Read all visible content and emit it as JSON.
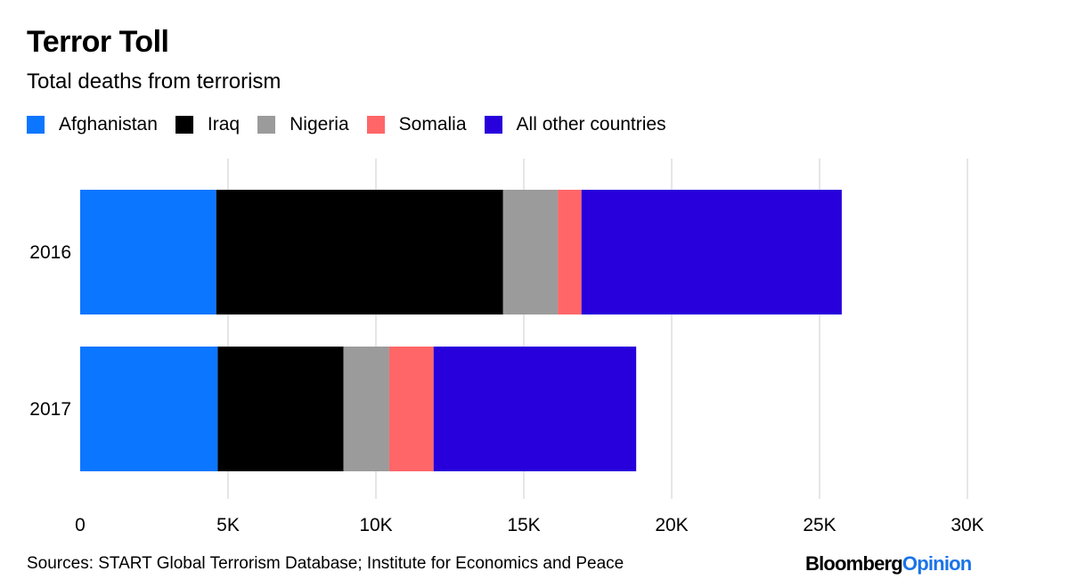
{
  "chart_data": {
    "type": "bar",
    "orientation": "horizontal",
    "stacked": true,
    "title": "Terror Toll",
    "subtitle": "Total deaths from terrorism",
    "categories": [
      "2016",
      "2017"
    ],
    "series": [
      {
        "name": "Afghanistan",
        "color": "#0b76ff",
        "values": [
          4600,
          4650
        ]
      },
      {
        "name": "Iraq",
        "color": "#000000",
        "values": [
          9700,
          4250
        ]
      },
      {
        "name": "Nigeria",
        "color": "#9b9b9b",
        "values": [
          1850,
          1550
        ]
      },
      {
        "name": "Somalia",
        "color": "#ff6668",
        "values": [
          800,
          1500
        ]
      },
      {
        "name": "All other countries",
        "color": "#2800dc",
        "values": [
          8800,
          6850
        ]
      }
    ],
    "xlim": [
      0,
      30000
    ],
    "xticks": [
      0,
      5000,
      10000,
      15000,
      20000,
      25000,
      30000
    ],
    "xtick_labels": [
      "0",
      "5K",
      "10K",
      "15K",
      "20K",
      "25K",
      "30K"
    ],
    "grid": true,
    "legend_position": "top-left"
  },
  "source": "Sources: START Global Terrorism Database; Institute for Economics and Peace",
  "logo": {
    "part1": "Bloomberg",
    "part2": "Opinion"
  }
}
